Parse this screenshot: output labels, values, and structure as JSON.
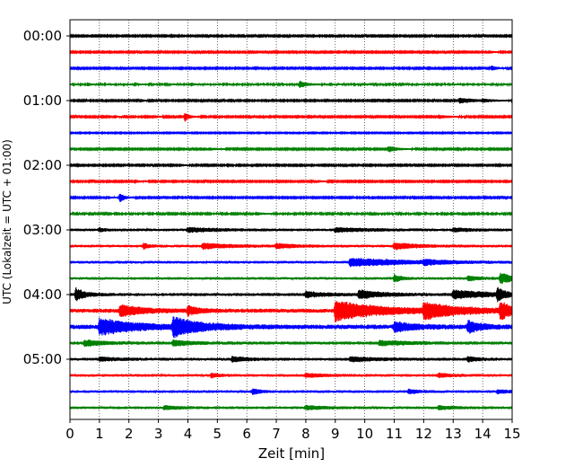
{
  "chart_data": {
    "type": "line",
    "subtype": "helicorder",
    "title": "",
    "xlabel": "Zeit  [min]",
    "ylabel": "UTC (Lokalzeit = UTC + 01:00)",
    "xlim": [
      0,
      15
    ],
    "x_ticks": [
      "0",
      "1",
      "2",
      "3",
      "4",
      "5",
      "6",
      "7",
      "8",
      "9",
      "10",
      "11",
      "12",
      "13",
      "14",
      "15"
    ],
    "grid": "vertical dotted at each minute",
    "trace_interval_min": 15,
    "trace_colors": [
      "#000000",
      "#ff0000",
      "#0000ff",
      "#008000"
    ],
    "y_ticks": [
      {
        "label": "00:00",
        "row": 0
      },
      {
        "label": "01:00",
        "row": 4
      },
      {
        "label": "02:00",
        "row": 8
      },
      {
        "label": "03:00",
        "row": 12
      },
      {
        "label": "04:00",
        "row": 16
      },
      {
        "label": "05:00",
        "row": 20
      }
    ],
    "traces": [
      {
        "start": "00:00",
        "noise": 0.15,
        "events": []
      },
      {
        "start": "00:15",
        "noise": 0.15,
        "events": [
          {
            "t": 14.2,
            "amp": 0.35,
            "dur": 0.25
          }
        ]
      },
      {
        "start": "00:30",
        "noise": 0.15,
        "events": [
          {
            "t": 14.3,
            "amp": 0.6,
            "dur": 0.3
          }
        ]
      },
      {
        "start": "00:45",
        "noise": 0.2,
        "events": [
          {
            "t": 0.6,
            "amp": 0.4,
            "dur": 0.15
          },
          {
            "t": 4.1,
            "amp": 0.3,
            "dur": 0.2
          },
          {
            "t": 7.8,
            "amp": 0.8,
            "dur": 0.35
          }
        ]
      },
      {
        "start": "01:00",
        "noise": 0.15,
        "events": [
          {
            "t": 2.4,
            "amp": 0.3,
            "dur": 0.2
          },
          {
            "t": 13.2,
            "amp": 0.6,
            "dur": 1.0
          },
          {
            "t": 14.0,
            "amp": 0.3,
            "dur": 0.4
          }
        ]
      },
      {
        "start": "01:15",
        "noise": 0.15,
        "events": [
          {
            "t": 1.5,
            "amp": 0.35,
            "dur": 0.2
          },
          {
            "t": 2.9,
            "amp": 0.3,
            "dur": 0.2
          },
          {
            "t": 3.9,
            "amp": 1.0,
            "dur": 0.25
          },
          {
            "t": 12.5,
            "amp": 0.4,
            "dur": 0.6
          },
          {
            "t": 15.0,
            "amp": 0.4,
            "dur": 0.2
          }
        ]
      },
      {
        "start": "01:30",
        "noise": 0.12,
        "events": []
      },
      {
        "start": "01:45",
        "noise": 0.15,
        "events": [
          {
            "t": 4.7,
            "amp": 0.3,
            "dur": 0.5
          },
          {
            "t": 10.8,
            "amp": 0.7,
            "dur": 0.5
          }
        ]
      },
      {
        "start": "02:00",
        "noise": 0.15,
        "events": [
          {
            "t": 3.7,
            "amp": 0.3,
            "dur": 0.3
          }
        ]
      },
      {
        "start": "02:15",
        "noise": 0.15,
        "events": [
          {
            "t": 2.2,
            "amp": 0.4,
            "dur": 0.3
          },
          {
            "t": 8.4,
            "amp": 0.25,
            "dur": 0.3
          }
        ]
      },
      {
        "start": "02:30",
        "noise": 0.15,
        "events": [
          {
            "t": 1.7,
            "amp": 1.2,
            "dur": 0.25
          },
          {
            "t": 1.3,
            "amp": 0.3,
            "dur": 0.2
          }
        ]
      },
      {
        "start": "02:45",
        "noise": 0.18,
        "events": [
          {
            "t": 6.3,
            "amp": 0.3,
            "dur": 0.4
          }
        ]
      },
      {
        "start": "03:00",
        "noise": 0.3,
        "events": [
          {
            "t": 1.0,
            "amp": 0.4,
            "dur": 0.3
          },
          {
            "t": 4.0,
            "amp": 0.5,
            "dur": 1.5
          },
          {
            "t": 9.0,
            "amp": 0.4,
            "dur": 2.0
          },
          {
            "t": 13.0,
            "amp": 0.4,
            "dur": 1.0
          }
        ]
      },
      {
        "start": "03:15",
        "noise": 0.3,
        "events": [
          {
            "t": 2.5,
            "amp": 0.6,
            "dur": 0.3
          },
          {
            "t": 4.5,
            "amp": 0.6,
            "dur": 1.5
          },
          {
            "t": 7.0,
            "amp": 0.5,
            "dur": 1.0
          },
          {
            "t": 11.0,
            "amp": 0.7,
            "dur": 1.2
          }
        ]
      },
      {
        "start": "03:30",
        "noise": 0.3,
        "events": [
          {
            "t": 9.5,
            "amp": 0.9,
            "dur": 3.0
          },
          {
            "t": 12.0,
            "amp": 0.5,
            "dur": 1.0
          }
        ]
      },
      {
        "start": "03:45",
        "noise": 0.3,
        "events": [
          {
            "t": 11.0,
            "amp": 0.8,
            "dur": 0.4
          },
          {
            "t": 13.5,
            "amp": 0.5,
            "dur": 0.6
          },
          {
            "t": 14.6,
            "amp": 1.1,
            "dur": 0.8
          }
        ]
      },
      {
        "start": "04:00",
        "noise": 0.35,
        "events": [
          {
            "t": 0.2,
            "amp": 1.4,
            "dur": 0.5
          },
          {
            "t": 8.0,
            "amp": 0.6,
            "dur": 1.0
          },
          {
            "t": 9.8,
            "amp": 0.9,
            "dur": 1.2
          },
          {
            "t": 13.0,
            "amp": 0.9,
            "dur": 2.0
          },
          {
            "t": 14.5,
            "amp": 1.4,
            "dur": 0.4
          }
        ]
      },
      {
        "start": "04:15",
        "noise": 0.45,
        "events": [
          {
            "t": 1.7,
            "amp": 1.3,
            "dur": 1.2
          },
          {
            "t": 4.0,
            "amp": 1.0,
            "dur": 0.6
          },
          {
            "t": 9.0,
            "amp": 2.2,
            "dur": 2.5
          },
          {
            "t": 12.0,
            "amp": 1.6,
            "dur": 2.0
          },
          {
            "t": 14.6,
            "amp": 2.0,
            "dur": 0.6
          }
        ]
      },
      {
        "start": "04:30",
        "noise": 0.5,
        "events": [
          {
            "t": 1.0,
            "amp": 1.8,
            "dur": 2.0
          },
          {
            "t": 3.5,
            "amp": 2.0,
            "dur": 1.5
          },
          {
            "t": 11.0,
            "amp": 1.0,
            "dur": 1.2
          },
          {
            "t": 13.5,
            "amp": 1.2,
            "dur": 0.8
          }
        ]
      },
      {
        "start": "04:45",
        "noise": 0.35,
        "events": [
          {
            "t": 0.5,
            "amp": 0.6,
            "dur": 1.0
          },
          {
            "t": 3.5,
            "amp": 0.6,
            "dur": 1.0
          },
          {
            "t": 10.5,
            "amp": 0.5,
            "dur": 1.5
          }
        ]
      },
      {
        "start": "05:00",
        "noise": 0.32,
        "events": [
          {
            "t": 1.0,
            "amp": 0.4,
            "dur": 1.0
          },
          {
            "t": 5.5,
            "amp": 0.5,
            "dur": 1.0
          },
          {
            "t": 9.5,
            "amp": 0.5,
            "dur": 1.5
          },
          {
            "t": 13.5,
            "amp": 0.5,
            "dur": 0.6
          }
        ]
      },
      {
        "start": "05:15",
        "noise": 0.3,
        "events": [
          {
            "t": 4.8,
            "amp": 0.5,
            "dur": 0.4
          },
          {
            "t": 8.0,
            "amp": 0.4,
            "dur": 1.0
          },
          {
            "t": 12.5,
            "amp": 0.4,
            "dur": 0.8
          }
        ]
      },
      {
        "start": "05:30",
        "noise": 0.3,
        "events": [
          {
            "t": 6.2,
            "amp": 0.6,
            "dur": 0.4
          },
          {
            "t": 11.5,
            "amp": 0.5,
            "dur": 0.5
          },
          {
            "t": 14.5,
            "amp": 0.4,
            "dur": 0.6
          }
        ]
      },
      {
        "start": "05:45",
        "noise": 0.3,
        "events": [
          {
            "t": 3.2,
            "amp": 0.4,
            "dur": 0.8
          },
          {
            "t": 8.0,
            "amp": 0.4,
            "dur": 1.0
          },
          {
            "t": 12.5,
            "amp": 0.4,
            "dur": 0.8
          }
        ]
      }
    ]
  }
}
